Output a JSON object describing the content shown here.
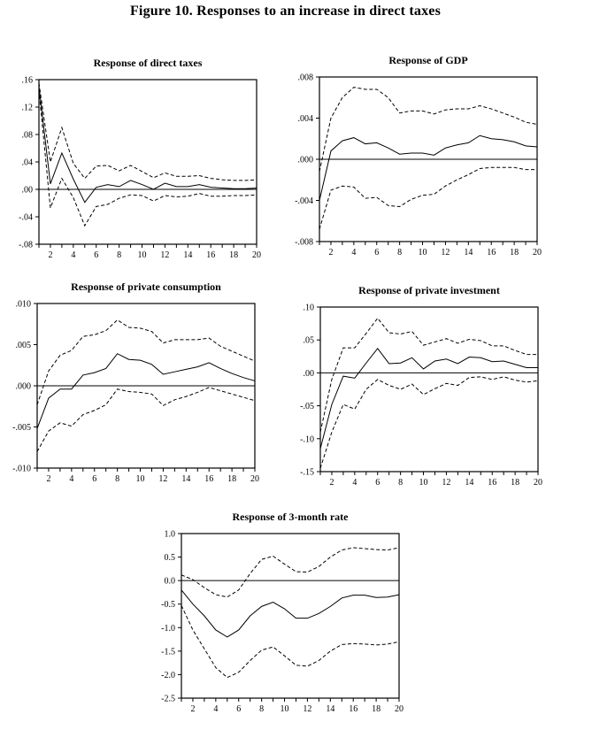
{
  "figure": {
    "title": "Figure 10. Responses to an increase in direct taxes"
  },
  "chart_data": [
    {
      "type": "line",
      "title": "Response of direct taxes",
      "xlabel": "",
      "ylabel": "",
      "x_range": [
        1,
        20
      ],
      "xticks": [
        2,
        4,
        6,
        8,
        10,
        12,
        14,
        16,
        18,
        20
      ],
      "ylim": [
        -0.08,
        0.16
      ],
      "yticks": [
        {
          "value": 0.16,
          "label": ".16"
        },
        {
          "value": 0.12,
          "label": ".12"
        },
        {
          "value": 0.08,
          "label": ".08"
        },
        {
          "value": 0.04,
          "label": ".04"
        },
        {
          "value": 0.0,
          "label": ".00"
        },
        {
          "value": -0.04,
          "label": "-.04"
        },
        {
          "value": -0.08,
          "label": "-.08"
        }
      ],
      "zero_line": true,
      "legend_position": "none",
      "grid": false,
      "series": [
        {
          "name": "response",
          "style": "solid",
          "values": [
            0.15,
            0.008,
            0.053,
            0.015,
            -0.019,
            0.003,
            0.007,
            0.004,
            0.013,
            0.007,
            0.0,
            0.009,
            0.004,
            0.004,
            0.007,
            0.003,
            0.002,
            0.001,
            0.001,
            0.002
          ]
        },
        {
          "name": "upper-band",
          "style": "dashed",
          "values": [
            0.155,
            0.04,
            0.09,
            0.038,
            0.016,
            0.034,
            0.035,
            0.027,
            0.035,
            0.026,
            0.017,
            0.024,
            0.019,
            0.019,
            0.02,
            0.016,
            0.014,
            0.013,
            0.013,
            0.014
          ]
        },
        {
          "name": "lower-band",
          "style": "dashed",
          "values": [
            0.145,
            -0.027,
            0.016,
            -0.012,
            -0.053,
            -0.025,
            -0.022,
            -0.013,
            -0.008,
            -0.009,
            -0.017,
            -0.009,
            -0.011,
            -0.01,
            -0.006,
            -0.01,
            -0.01,
            -0.009,
            -0.009,
            -0.008
          ]
        }
      ]
    },
    {
      "type": "line",
      "title": "Response of GDP",
      "xlabel": "",
      "ylabel": "",
      "x_range": [
        1,
        20
      ],
      "xticks": [
        2,
        4,
        6,
        8,
        10,
        12,
        14,
        16,
        18,
        20
      ],
      "ylim": [
        -0.008,
        0.008
      ],
      "yticks": [
        {
          "value": 0.008,
          "label": ".008"
        },
        {
          "value": 0.004,
          "label": ".004"
        },
        {
          "value": 0.0,
          "label": ".000"
        },
        {
          "value": -0.004,
          "label": "-.004"
        },
        {
          "value": -0.008,
          "label": "-.008"
        }
      ],
      "zero_line": true,
      "legend_position": "none",
      "grid": false,
      "series": [
        {
          "name": "response",
          "style": "solid",
          "values": [
            -0.004,
            0.0008,
            0.0018,
            0.0021,
            0.0015,
            0.0016,
            0.0011,
            0.0005,
            0.0006,
            0.0006,
            0.0004,
            0.0011,
            0.0014,
            0.0016,
            0.0023,
            0.002,
            0.0019,
            0.0017,
            0.0013,
            0.0012
          ]
        },
        {
          "name": "upper-band",
          "style": "dashed",
          "values": [
            -0.0012,
            0.004,
            0.006,
            0.007,
            0.0068,
            0.0068,
            0.006,
            0.0045,
            0.0047,
            0.0047,
            0.0044,
            0.0048,
            0.0049,
            0.0049,
            0.0052,
            0.0049,
            0.0045,
            0.0041,
            0.0036,
            0.0034
          ]
        },
        {
          "name": "lower-band",
          "style": "dashed",
          "values": [
            -0.0068,
            -0.003,
            -0.0026,
            -0.0027,
            -0.0038,
            -0.0037,
            -0.0045,
            -0.0046,
            -0.0039,
            -0.0035,
            -0.0034,
            -0.0026,
            -0.002,
            -0.0015,
            -0.0009,
            -0.0008,
            -0.0008,
            -0.0008,
            -0.001,
            -0.001
          ]
        }
      ]
    },
    {
      "type": "line",
      "title": "Response of private consumption",
      "xlabel": "",
      "ylabel": "",
      "x_range": [
        1,
        20
      ],
      "xticks": [
        2,
        4,
        6,
        8,
        10,
        12,
        14,
        16,
        18,
        20
      ],
      "ylim": [
        -0.01,
        0.01
      ],
      "yticks": [
        {
          "value": 0.01,
          "label": ".010"
        },
        {
          "value": 0.005,
          "label": ".005"
        },
        {
          "value": 0.0,
          "label": ".000"
        },
        {
          "value": -0.005,
          "label": "-.005"
        },
        {
          "value": -0.01,
          "label": "-.010"
        }
      ],
      "zero_line": true,
      "legend_position": "none",
      "grid": false,
      "series": [
        {
          "name": "response",
          "style": "solid",
          "values": [
            -0.0052,
            -0.0015,
            -0.0004,
            -0.0004,
            0.0013,
            0.0016,
            0.0021,
            0.0039,
            0.0032,
            0.0031,
            0.0026,
            0.0014,
            0.0017,
            0.002,
            0.0023,
            0.0028,
            0.0021,
            0.0015,
            0.001,
            0.0006
          ]
        },
        {
          "name": "upper-band",
          "style": "dashed",
          "values": [
            -0.0023,
            0.0018,
            0.0037,
            0.0043,
            0.006,
            0.0062,
            0.0067,
            0.008,
            0.0071,
            0.007,
            0.0066,
            0.0052,
            0.0056,
            0.0056,
            0.0056,
            0.0058,
            0.0048,
            0.0042,
            0.0036,
            0.003
          ]
        },
        {
          "name": "lower-band",
          "style": "dashed",
          "values": [
            -0.008,
            -0.0055,
            -0.0045,
            -0.0049,
            -0.0035,
            -0.003,
            -0.0023,
            -0.0004,
            -0.0007,
            -0.0008,
            -0.001,
            -0.0024,
            -0.0017,
            -0.0013,
            -0.0008,
            -0.0002,
            -0.0006,
            -0.001,
            -0.0014,
            -0.0018
          ]
        }
      ]
    },
    {
      "type": "line",
      "title": "Response of private investment",
      "xlabel": "",
      "ylabel": "",
      "x_range": [
        1,
        20
      ],
      "xticks": [
        2,
        4,
        6,
        8,
        10,
        12,
        14,
        16,
        18,
        20
      ],
      "ylim": [
        -0.15,
        0.1
      ],
      "yticks": [
        {
          "value": 0.1,
          "label": ".10"
        },
        {
          "value": 0.05,
          "label": ".05"
        },
        {
          "value": 0.0,
          "label": ".00"
        },
        {
          "value": -0.05,
          "label": "-.05"
        },
        {
          "value": -0.1,
          "label": "-.10"
        },
        {
          "value": -0.15,
          "label": "-.15"
        }
      ],
      "zero_line": true,
      "legend_position": "none",
      "grid": false,
      "series": [
        {
          "name": "response",
          "style": "solid",
          "values": [
            -0.115,
            -0.048,
            -0.005,
            -0.008,
            0.015,
            0.037,
            0.014,
            0.015,
            0.023,
            0.006,
            0.018,
            0.021,
            0.014,
            0.024,
            0.023,
            0.017,
            0.018,
            0.013,
            0.008,
            0.008
          ]
        },
        {
          "name": "upper-band",
          "style": "dashed",
          "values": [
            -0.09,
            -0.01,
            0.038,
            0.038,
            0.06,
            0.083,
            0.061,
            0.059,
            0.063,
            0.042,
            0.047,
            0.052,
            0.045,
            0.051,
            0.049,
            0.041,
            0.041,
            0.034,
            0.028,
            0.028
          ]
        },
        {
          "name": "lower-band",
          "style": "dashed",
          "values": [
            -0.145,
            -0.09,
            -0.048,
            -0.055,
            -0.025,
            -0.01,
            -0.019,
            -0.025,
            -0.017,
            -0.033,
            -0.024,
            -0.016,
            -0.019,
            -0.007,
            -0.006,
            -0.01,
            -0.006,
            -0.011,
            -0.014,
            -0.012
          ]
        }
      ]
    },
    {
      "type": "line",
      "title": "Response of 3-month rate",
      "xlabel": "",
      "ylabel": "",
      "x_range": [
        1,
        20
      ],
      "xticks": [
        2,
        4,
        6,
        8,
        10,
        12,
        14,
        16,
        18,
        20
      ],
      "ylim": [
        -2.5,
        1.0
      ],
      "yticks": [
        {
          "value": 1.0,
          "label": "1.0"
        },
        {
          "value": 0.5,
          "label": "0.5"
        },
        {
          "value": 0.0,
          "label": "0.0"
        },
        {
          "value": -0.5,
          "label": "-0.5"
        },
        {
          "value": -1.0,
          "label": "-1.0"
        },
        {
          "value": -1.5,
          "label": "-1.5"
        },
        {
          "value": -2.0,
          "label": "-2.0"
        },
        {
          "value": -2.5,
          "label": "-2.5"
        }
      ],
      "zero_line": true,
      "legend_position": "none",
      "grid": false,
      "series": [
        {
          "name": "response",
          "style": "solid",
          "values": [
            -0.2,
            -0.5,
            -0.75,
            -1.05,
            -1.2,
            -1.05,
            -0.75,
            -0.55,
            -0.46,
            -0.6,
            -0.8,
            -0.8,
            -0.7,
            -0.55,
            -0.37,
            -0.31,
            -0.31,
            -0.36,
            -0.35,
            -0.3
          ]
        },
        {
          "name": "upper-band",
          "style": "dashed",
          "values": [
            0.12,
            0.02,
            -0.15,
            -0.3,
            -0.35,
            -0.2,
            0.15,
            0.45,
            0.52,
            0.35,
            0.19,
            0.18,
            0.3,
            0.5,
            0.65,
            0.7,
            0.68,
            0.66,
            0.65,
            0.7
          ]
        },
        {
          "name": "lower-band",
          "style": "dashed",
          "values": [
            -0.53,
            -1.05,
            -1.45,
            -1.85,
            -2.06,
            -1.95,
            -1.7,
            -1.48,
            -1.41,
            -1.6,
            -1.8,
            -1.82,
            -1.7,
            -1.5,
            -1.36,
            -1.34,
            -1.35,
            -1.37,
            -1.35,
            -1.3
          ]
        }
      ]
    }
  ]
}
